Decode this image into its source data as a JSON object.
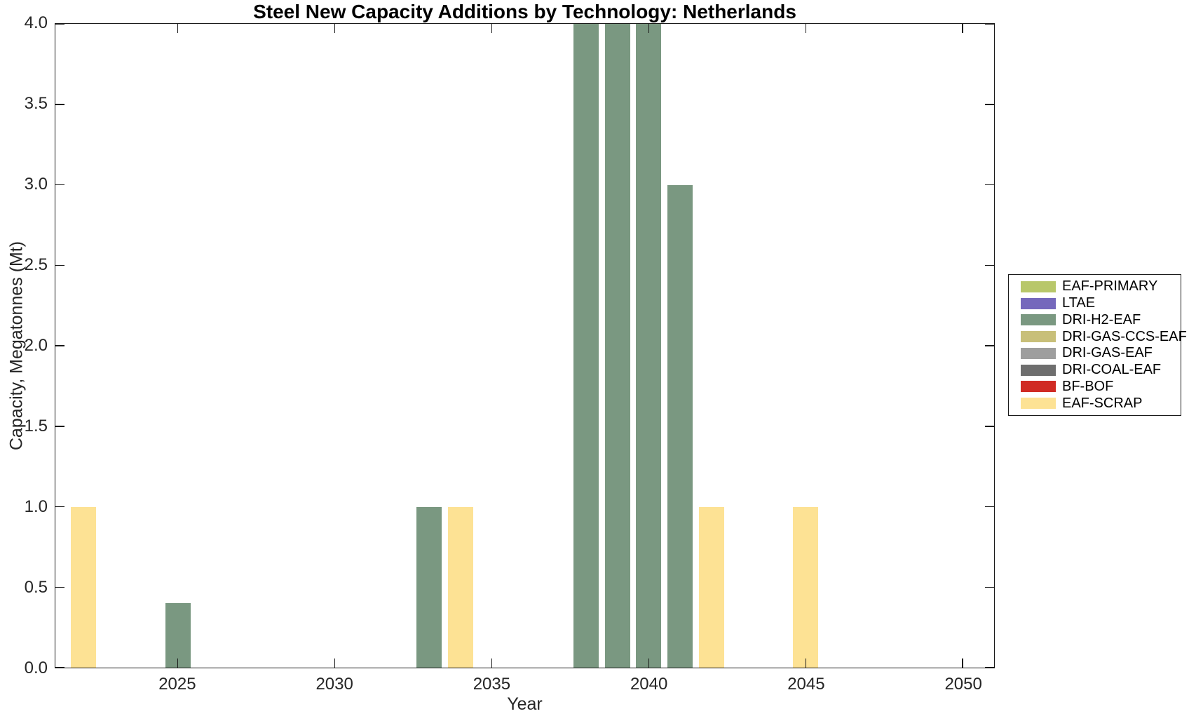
{
  "chart_data": {
    "type": "bar",
    "title": "Steel New Capacity Additions by Technology: Netherlands",
    "xlabel": "Year",
    "ylabel": "Capacity, Megatonnes (Mt)",
    "xlim": [
      2021.1,
      2051.0
    ],
    "ylim": [
      0,
      4
    ],
    "xticks": [
      2025,
      2030,
      2035,
      2040,
      2045,
      2050
    ],
    "yticks": [
      0,
      0.5,
      1,
      1.5,
      2,
      2.5,
      3,
      3.5,
      4
    ],
    "ytick_labels": [
      "0.0",
      "0.5",
      "1.0",
      "1.5",
      "2.0",
      "2.5",
      "3.0",
      "3.5",
      "4.0"
    ],
    "grid": false,
    "bar_width_years": 0.8,
    "bars": [
      {
        "x": 2022,
        "series": "EAF-SCRAP",
        "y": 1.0
      },
      {
        "x": 2025,
        "series": "DRI-H2-EAF",
        "y": 0.4
      },
      {
        "x": 2033,
        "series": "DRI-H2-EAF",
        "y": 1.0
      },
      {
        "x": 2034,
        "series": "EAF-SCRAP",
        "y": 1.0
      },
      {
        "x": 2038,
        "series": "DRI-H2-EAF",
        "y": 4.0
      },
      {
        "x": 2039,
        "series": "DRI-H2-EAF",
        "y": 4.0
      },
      {
        "x": 2040,
        "series": "DRI-H2-EAF",
        "y": 4.0
      },
      {
        "x": 2041,
        "series": "DRI-H2-EAF",
        "y": 3.0
      },
      {
        "x": 2042,
        "series": "EAF-SCRAP",
        "y": 1.0
      },
      {
        "x": 2045,
        "series": "EAF-SCRAP",
        "y": 1.0
      }
    ],
    "series_colors": {
      "EAF-PRIMARY": "#b8c76a",
      "LTAE": "#7568bc",
      "DRI-H2-EAF": "#7a9881",
      "DRI-GAS-CCS-EAF": "#c8bf79",
      "DRI-GAS-EAF": "#9e9e9e",
      "DRI-COAL-EAF": "#6e6e6e",
      "BF-BOF": "#d02b24",
      "EAF-SCRAP": "#fde294"
    },
    "legend": {
      "position": "right-outside",
      "entries": [
        {
          "label": "EAF-PRIMARY",
          "color": "#b8c76a"
        },
        {
          "label": "LTAE",
          "color": "#7568bc"
        },
        {
          "label": "DRI-H2-EAF",
          "color": "#7a9881"
        },
        {
          "label": "DRI-GAS-CCS-EAF",
          "color": "#c8bf79"
        },
        {
          "label": "DRI-GAS-EAF",
          "color": "#9e9e9e"
        },
        {
          "label": "DRI-COAL-EAF",
          "color": "#6e6e6e"
        },
        {
          "label": "BF-BOF",
          "color": "#d02b24"
        },
        {
          "label": "EAF-SCRAP",
          "color": "#fde294"
        }
      ]
    },
    "axis_color": "#1a1a1a",
    "text_color": "#262626"
  }
}
